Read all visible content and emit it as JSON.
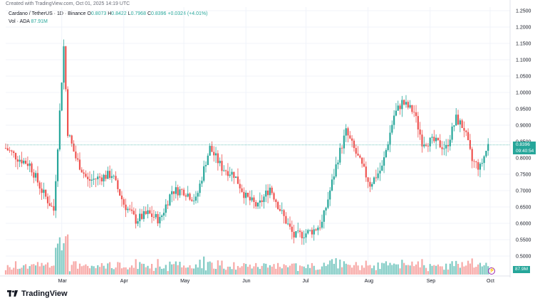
{
  "header": {
    "created": "Created with TradingView.com, Oct 01, 2025 14:19 UTC"
  },
  "legend": {
    "symbol": "Cardano / TetherUS · 1D · Binance",
    "o_label": "O",
    "o": "0.8073",
    "h_label": "H",
    "h": "0.8422",
    "l_label": "L",
    "l": "0.7968",
    "c_label": "C",
    "c": "0.8396",
    "change": "+0.0324 (+4.01%)",
    "vol_label": "Vol · ADA",
    "vol": "87.91M"
  },
  "price_tag": {
    "price": "0.8396",
    "countdown": "09:40:54"
  },
  "vol_tag": "87.9M",
  "brand": {
    "name": "TradingView"
  },
  "colors": {
    "up": "#26a69a",
    "down": "#ef5350",
    "up_vol": "#80cbc4",
    "down_vol": "#f7a9a7",
    "grid": "#f0f3fa"
  },
  "chart_data": {
    "type": "candlestick",
    "y_ticks": [
      "1.2500",
      "1.2000",
      "1.1500",
      "1.1000",
      "1.0500",
      "1.0000",
      "0.9500",
      "0.9000",
      "0.8500",
      "0.8000",
      "0.7500",
      "0.7000",
      "0.6500",
      "0.6000",
      "0.5500",
      "0.5000"
    ],
    "ylim": [
      0.45,
      1.26
    ],
    "x_ticks": [
      "Mar",
      "Apr",
      "May",
      "Jun",
      "Jul",
      "Aug",
      "Sep",
      "Oct"
    ],
    "last_close": 0.8396,
    "close_path": [
      [
        "2025-02-01",
        0.83
      ],
      [
        "2025-02-07",
        0.8
      ],
      [
        "2025-02-13",
        0.78
      ],
      [
        "2025-02-19",
        0.7
      ],
      [
        "2025-02-25",
        0.64
      ],
      [
        "2025-03-02",
        1.14
      ],
      [
        "2025-03-04",
        0.88
      ],
      [
        "2025-03-08",
        0.8
      ],
      [
        "2025-03-14",
        0.73
      ],
      [
        "2025-03-20",
        0.74
      ],
      [
        "2025-03-26",
        0.75
      ],
      [
        "2025-04-01",
        0.66
      ],
      [
        "2025-04-07",
        0.61
      ],
      [
        "2025-04-13",
        0.63
      ],
      [
        "2025-04-19",
        0.61
      ],
      [
        "2025-04-25",
        0.7
      ],
      [
        "2025-05-01",
        0.7
      ],
      [
        "2025-05-07",
        0.67
      ],
      [
        "2025-05-12",
        0.79
      ],
      [
        "2025-05-14",
        0.83
      ],
      [
        "2025-05-20",
        0.77
      ],
      [
        "2025-05-26",
        0.75
      ],
      [
        "2025-06-01",
        0.68
      ],
      [
        "2025-06-07",
        0.65
      ],
      [
        "2025-06-13",
        0.71
      ],
      [
        "2025-06-19",
        0.63
      ],
      [
        "2025-06-25",
        0.56
      ],
      [
        "2025-07-01",
        0.57
      ],
      [
        "2025-07-05",
        0.58
      ],
      [
        "2025-07-09",
        0.6
      ],
      [
        "2025-07-13",
        0.7
      ],
      [
        "2025-07-17",
        0.8
      ],
      [
        "2025-07-21",
        0.88
      ],
      [
        "2025-07-27",
        0.8
      ],
      [
        "2025-08-02",
        0.72
      ],
      [
        "2025-08-08",
        0.77
      ],
      [
        "2025-08-14",
        0.93
      ],
      [
        "2025-08-18",
        0.97
      ],
      [
        "2025-08-24",
        0.94
      ],
      [
        "2025-08-28",
        0.85
      ],
      [
        "2025-09-03",
        0.85
      ],
      [
        "2025-09-09",
        0.83
      ],
      [
        "2025-09-14",
        0.92
      ],
      [
        "2025-09-18",
        0.89
      ],
      [
        "2025-09-22",
        0.79
      ],
      [
        "2025-09-26",
        0.77
      ],
      [
        "2025-09-30",
        0.8396
      ]
    ]
  }
}
